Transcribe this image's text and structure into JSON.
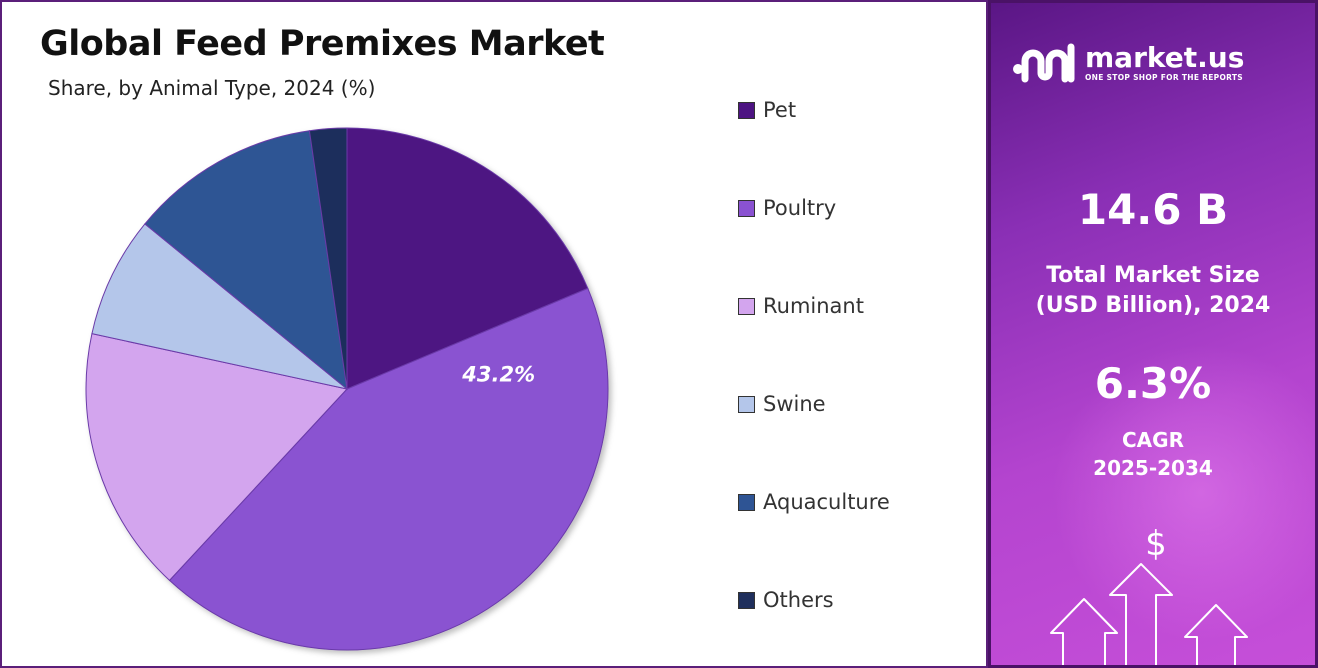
{
  "chart_data": {
    "type": "pie",
    "title": "Global Feed Premixes Market",
    "subtitle": "Share, by Animal Type, 2024 (%)",
    "categories": [
      "Pet",
      "Poultry",
      "Ruminant",
      "Swine",
      "Aquaculture",
      "Others"
    ],
    "values": [
      18.7,
      43.2,
      16.5,
      7.5,
      11.8,
      2.3
    ],
    "colors": [
      "#4d1482",
      "#8a52d1",
      "#d3a5ee",
      "#b4c6ea",
      "#2e5494",
      "#1f2f5c"
    ],
    "data_labels": [
      {
        "category": "Poultry",
        "text": "43.2%"
      }
    ],
    "legend_position": "right"
  },
  "side_panel": {
    "brand_name": "market.us",
    "brand_tagline": "ONE STOP SHOP FOR THE REPORTS",
    "market_size_value": "14.6 B",
    "market_size_label_line1": "Total Market Size",
    "market_size_label_line2": "(USD Billion), 2024",
    "cagr_value": "6.3%",
    "cagr_label_line1": "CAGR",
    "cagr_label_line2": "2025-2034",
    "dollar_symbol": "$",
    "icons": [
      "market-us-logo-icon",
      "dollar-icon",
      "up-arrow-icon"
    ]
  }
}
